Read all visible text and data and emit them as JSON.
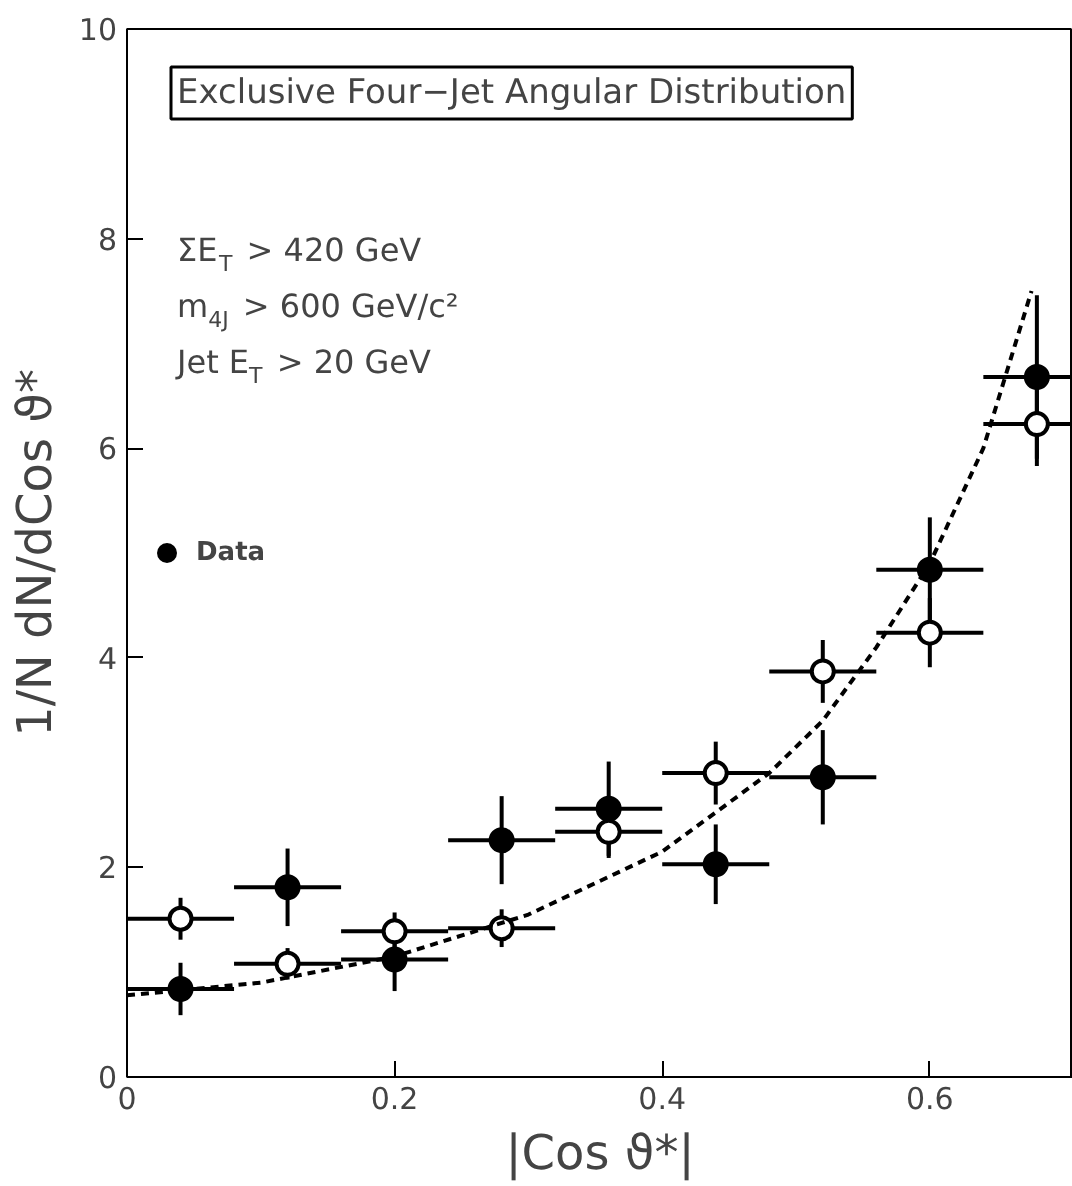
{
  "chart_data": {
    "type": "scatter",
    "title": "Exclusive Four−Jet Angular Distribution",
    "xlabel": "|Cos ϑ*|",
    "ylabel": "1/N dN/dCos ϑ*",
    "annotations": [
      "ΣE$_{T}$ > 420 GeV",
      "m$_{4J}$ > 600 GeV/c²",
      "Jet E$_{T}$ > 20 GeV"
    ],
    "xlim": [
      0,
      0.707
    ],
    "ylim": [
      0,
      10
    ],
    "xticks": [
      0,
      0.2,
      0.4,
      0.6
    ],
    "yticks": [
      0,
      2,
      4,
      6,
      8,
      10
    ],
    "grid": false,
    "legend": "left",
    "marker": "circle",
    "x": [
      0.04,
      0.12,
      0.2,
      0.28,
      0.36,
      0.44,
      0.52,
      0.6,
      0.68
    ],
    "series": [
      {
        "name": "Data",
        "color": "#000000",
        "values": [
          0.84,
          1.81,
          1.12,
          2.26,
          2.56,
          2.03,
          2.86,
          4.84,
          6.68
        ],
        "errors": [
          0.25,
          0.37,
          0.3,
          0.42,
          0.45,
          0.38,
          0.45,
          0.5,
          0.78
        ],
        "xerrors": [
          0.04,
          0.04,
          0.04,
          0.04,
          0.04,
          0.04,
          0.04,
          0.04,
          0.04
        ]
      },
      {
        "color": "#000000",
        "marker": "open circle",
        "values": [
          1.51,
          1.08,
          1.39,
          1.42,
          2.34,
          2.9,
          3.87,
          4.24,
          6.23
        ],
        "errors": [
          0.2,
          0.15,
          0.18,
          0.18,
          0.25,
          0.3,
          0.3,
          0.33,
          0.4
        ],
        "xerrors": [
          0.04,
          0.04,
          0.04,
          0.04,
          0.04,
          0.04,
          0.04,
          0.04,
          0.04
        ]
      },
      {
        "type": "line",
        "color": "#000000",
        "marker": "none",
        "line_style": "dashed",
        "x": [
          0,
          0.1,
          0.2,
          0.3,
          0.4,
          0.48,
          0.52,
          0.56,
          0.6,
          0.64,
          0.676
        ],
        "values": [
          0.78,
          0.9,
          1.15,
          1.55,
          2.15,
          2.9,
          3.4,
          4.1,
          4.9,
          6.0,
          7.5
        ]
      }
    ]
  }
}
